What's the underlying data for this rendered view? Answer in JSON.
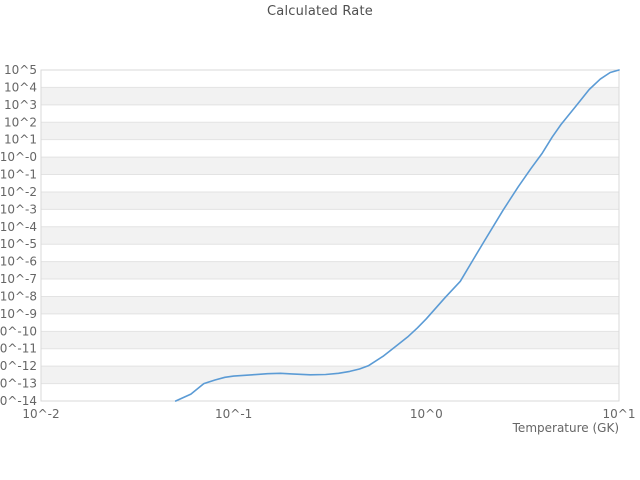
{
  "chart_data": {
    "type": "line",
    "title": "Calculated Rate",
    "xlabel": "Temperature (GK)",
    "ylabel": "",
    "x_scale": "log",
    "y_scale": "log",
    "xlim": [
      0.01,
      10.0
    ],
    "ylim": [
      1e-14,
      100000.0
    ],
    "x_tick_labels": [
      "10^-2",
      "10^-1",
      "10^0",
      "10^1"
    ],
    "x_tick_exponents": [
      -2,
      -1,
      0,
      1
    ],
    "y_tick_labels": [
      "10^5",
      "10^4",
      "10^3",
      "10^2",
      "10^1",
      "10^-0",
      "10^-1",
      "10^-2",
      "10^-3",
      "10^-4",
      "10^-5",
      "10^-6",
      "10^-7",
      "10^-8",
      "10^-9",
      "10^-10",
      "10^-11",
      "10^-12",
      "10^-13",
      "10^-14"
    ],
    "y_tick_exponents": [
      5,
      4,
      3,
      2,
      1,
      0,
      -1,
      -2,
      -3,
      -4,
      -5,
      -6,
      -7,
      -8,
      -9,
      -10,
      -11,
      -12,
      -13,
      -14
    ],
    "grid": "horizontal",
    "background_bands": true,
    "legend": "none",
    "series": [
      {
        "name": "Calculated Rate",
        "color": "#5b9bd5",
        "x": [
          0.05,
          0.06,
          0.07,
          0.08,
          0.09,
          0.1,
          0.125,
          0.15,
          0.175,
          0.2,
          0.25,
          0.3,
          0.35,
          0.4,
          0.45,
          0.5,
          0.6,
          0.7,
          0.8,
          0.9,
          1.0,
          1.25,
          1.5,
          1.75,
          2.0,
          2.5,
          3.0,
          3.5,
          4.0,
          4.5,
          5.0,
          6.0,
          7.0,
          8.0,
          9.0,
          10.0
        ],
        "y": [
          1e-14,
          2.5e-14,
          1e-13,
          1.6e-13,
          2.3e-13,
          2.7e-13,
          3.2e-13,
          3.7e-13,
          3.9e-13,
          3.6e-13,
          3.2e-13,
          3.3e-13,
          3.9e-13,
          5e-13,
          6.9e-13,
          1.05e-12,
          3.9e-12,
          1.5e-11,
          4.8e-11,
          1.6e-10,
          5.2e-10,
          8.5e-09,
          7.4e-08,
          1.3e-06,
          1.5e-05,
          0.00089,
          0.02,
          0.23,
          1.7,
          14,
          74,
          910,
          7600,
          30000.0,
          72000.0,
          100000.0
        ]
      }
    ]
  },
  "colors": {
    "band_gray": "#f2f2f2",
    "band_white": "#ffffff",
    "gridline": "#e3e3e3",
    "border": "#d9d9d9",
    "title_text": "#4f4f4f",
    "tick_text": "#666666",
    "line": "#5b9bd5",
    "background": "#ffffff"
  }
}
